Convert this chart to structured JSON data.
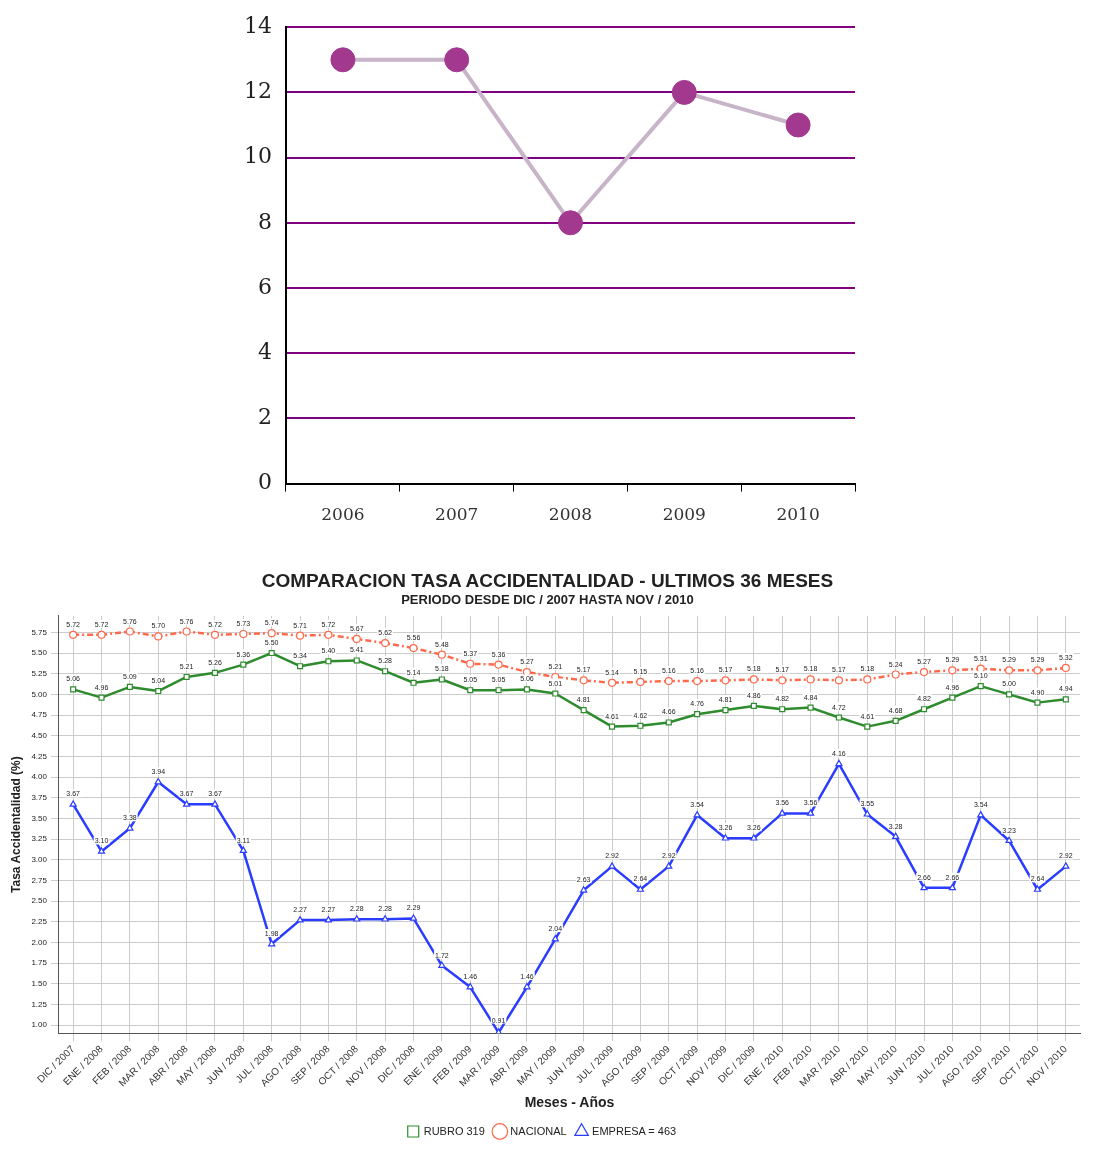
{
  "chart_data": [
    {
      "type": "line",
      "categories": [
        "2006",
        "2007",
        "2008",
        "2009",
        "2010"
      ],
      "series": [
        {
          "color": "#c8b4c8",
          "colors": [
            "#a3398f",
            "#a3398f",
            "#a3398f",
            "#a3398f",
            "#a3398f"
          ],
          "values": [
            13,
            13,
            8,
            12,
            11
          ]
        }
      ],
      "marker": "circle",
      "ylim": [
        0,
        14
      ],
      "yticks": [
        0,
        2,
        4,
        6,
        8,
        10,
        12,
        14
      ],
      "grid": "y",
      "legend": false
    },
    {
      "type": "line",
      "title": "COMPARACION TASA ACCIDENTALIDAD - ULTIMOS 36 MESES",
      "subtitle": "PERIODO DESDE DIC / 2007 HASTA NOV / 2010",
      "xlabel": "Meses - Años",
      "ylabel": "Tasa Accidentalidad (%)",
      "categories": [
        "DIC / 2007",
        "ENE / 2008",
        "FEB / 2008",
        "MAR / 2008",
        "ABR / 2008",
        "MAY / 2008",
        "JUN / 2008",
        "JUL / 2008",
        "AGO / 2008",
        "SEP / 2008",
        "OCT / 2008",
        "NOV / 2008",
        "DIC / 2008",
        "ENE / 2009",
        "FEB / 2009",
        "MAR / 2009",
        "ABR / 2009",
        "MAY / 2009",
        "JUN / 2009",
        "JUL / 2009",
        "AGO / 2009",
        "SEP / 2009",
        "OCT / 2009",
        "NOV / 2009",
        "DIC / 2009",
        "ENE / 2010",
        "FEB / 2010",
        "MAR / 2010",
        "ABR / 2010",
        "MAY / 2010",
        "JUN / 2010",
        "JUL / 2010",
        "AGO / 2010",
        "SEP / 2010",
        "OCT / 2010",
        "NOV / 2010"
      ],
      "series": [
        {
          "name": "RUBRO 319",
          "color": "#2e8b2e",
          "marker": "square",
          "line_style": "solid",
          "values": [
            5.06,
            4.96,
            5.09,
            5.04,
            5.21,
            5.26,
            5.36,
            5.5,
            5.34,
            5.4,
            5.41,
            5.28,
            5.14,
            5.18,
            5.05,
            5.05,
            5.06,
            5.01,
            4.81,
            4.61,
            4.62,
            4.66,
            4.76,
            4.81,
            4.86,
            4.82,
            4.84,
            4.72,
            4.61,
            4.68,
            4.82,
            4.96,
            5.1,
            5.0,
            4.9,
            4.94
          ],
          "value_labels": [
            "5.06",
            "4.96",
            "5.09",
            "5.04",
            "5.21",
            "5.26",
            "5.36",
            "5.50",
            "5.34",
            "5.40",
            "5.41",
            "5.28",
            "5.14",
            "5.18",
            "5.05",
            "5.05",
            "5.06",
            "5.01",
            "4.81",
            "4.61",
            "4.62",
            "4.66",
            "4.76",
            "4.81",
            "4.86",
            "4.82",
            "4.84",
            "4.72",
            "4.61",
            "4.68",
            "4.82",
            "4.96",
            "5.10",
            "5.00",
            "4.90",
            "4.94"
          ]
        },
        {
          "name": "NACIONAL",
          "color": "#ff6a4d",
          "marker": "circle",
          "line_style": "dashed",
          "values": [
            5.72,
            5.72,
            5.76,
            5.7,
            5.76,
            5.72,
            5.73,
            5.74,
            5.71,
            5.72,
            5.67,
            5.62,
            5.56,
            5.48,
            5.37,
            5.36,
            5.27,
            5.21,
            5.17,
            5.14,
            5.15,
            5.16,
            5.16,
            5.17,
            5.18,
            5.17,
            5.18,
            5.17,
            5.18,
            5.24,
            5.27,
            5.29,
            5.31,
            5.29,
            5.29,
            5.32
          ],
          "value_labels": [
            "5.72",
            "5.72",
            "5.76",
            "5.70",
            "5.76",
            "5.72",
            "5.73",
            "5.74",
            "5.71",
            "5.72",
            "5.67",
            "5.62",
            "5.56",
            "5.48",
            "5.37",
            "5.36",
            "5.27",
            "5.21",
            "5.17",
            "5.14",
            "5.15",
            "5.16",
            "5.16",
            "5.17",
            "5.18",
            "5.17",
            "5.18",
            "5.17",
            "5.18",
            "5.24",
            "5.27",
            "5.29",
            "5.31",
            "5.29",
            "5.29",
            "5.32"
          ]
        },
        {
          "name": "EMPRESA = 463",
          "color": "#2a3cff",
          "marker": "triangle",
          "line_style": "solid",
          "values": [
            3.67,
            3.1,
            3.38,
            3.94,
            3.67,
            3.67,
            3.11,
            1.98,
            2.27,
            2.27,
            2.28,
            2.28,
            2.29,
            1.72,
            1.46,
            0.91,
            1.46,
            2.04,
            2.63,
            2.92,
            2.64,
            2.92,
            3.54,
            3.26,
            3.26,
            3.56,
            3.56,
            4.16,
            3.55,
            3.28,
            2.66,
            2.66,
            3.54,
            3.23,
            2.64,
            2.92
          ],
          "value_labels": [
            "3.67",
            "3.10",
            "3.38",
            "3.94",
            "3.67",
            "3.67",
            "3.11",
            "1.98",
            "2.27",
            "2.27",
            "2.28",
            "2.28",
            "2.29",
            "1.72",
            "1.46",
            "0.91",
            "1.46",
            "2.04",
            "2.63",
            "2.92",
            "2.64",
            "2.92",
            "3.54",
            "3.26",
            "3.26",
            "3.56",
            "3.56",
            "4.16",
            "3.55",
            "3.28",
            "2.66",
            "2.66",
            "3.54",
            "3.23",
            "2.64",
            "2.92"
          ]
        }
      ],
      "ylim": [
        0.9,
        5.95
      ],
      "yticks": [
        {
          "value": 1,
          "label": "1.00"
        },
        {
          "value": 1.25,
          "label": "1.25"
        },
        {
          "value": 1.5,
          "label": "1.50"
        },
        {
          "value": 1.75,
          "label": "1.75"
        },
        {
          "value": 2,
          "label": "2.00"
        },
        {
          "value": 2.25,
          "label": "2.25"
        },
        {
          "value": 2.5,
          "label": "2.50"
        },
        {
          "value": 2.75,
          "label": "2.75"
        },
        {
          "value": 3,
          "label": "3.00"
        },
        {
          "value": 3.25,
          "label": "3.25"
        },
        {
          "value": 3.5,
          "label": "3.50"
        },
        {
          "value": 3.75,
          "label": "3.75"
        },
        {
          "value": 4,
          "label": "4.00"
        },
        {
          "value": 4.25,
          "label": "4.25"
        },
        {
          "value": 4.5,
          "label": "4.50"
        },
        {
          "value": 4.75,
          "label": "4.75"
        },
        {
          "value": 5,
          "label": "5.00"
        },
        {
          "value": 5.25,
          "label": "5.25"
        },
        {
          "value": 5.5,
          "label": "5.50"
        },
        {
          "value": 5.75,
          "label": "5.75"
        }
      ],
      "grid": true,
      "legend": "bottom"
    }
  ]
}
